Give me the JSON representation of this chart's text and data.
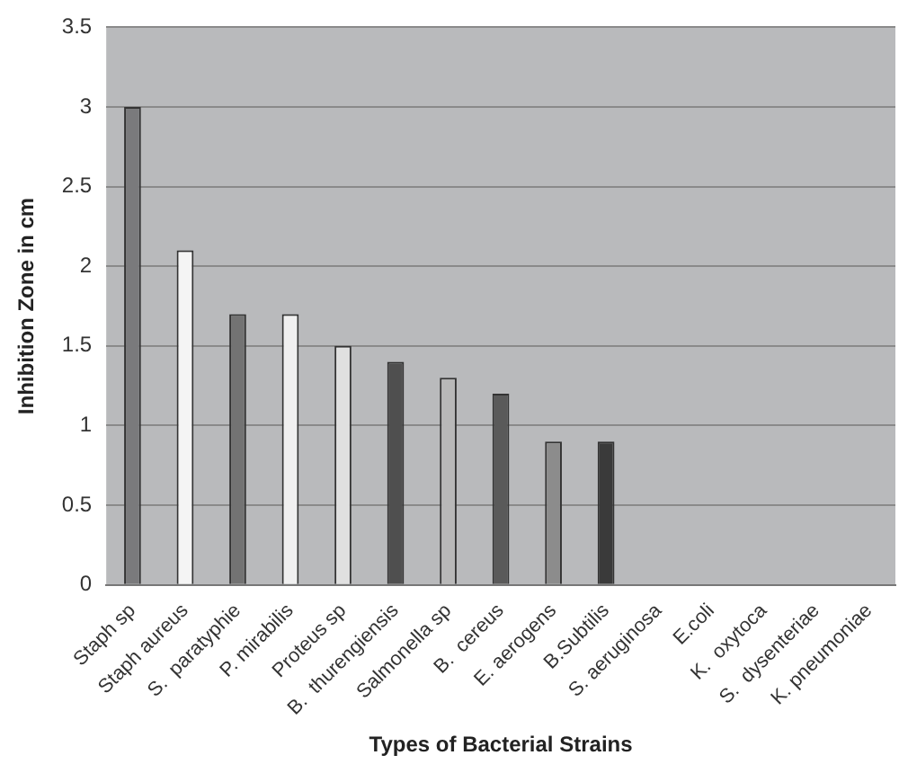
{
  "chart_data": {
    "type": "bar",
    "xlabel": "Types of Bacterial Strains",
    "ylabel": "Inhibition Zone in cm",
    "categories": [
      "Staph sp",
      "Staph aureus",
      "S.  paratyphie",
      "P. mirabilis",
      "Proteus sp",
      "B.  thurengiensis",
      "Salmonella sp",
      "B.  cereus",
      "E. aerogens",
      "B.Subtilis",
      "S. aeruginosa",
      "E.coli",
      "K.  oxytoca",
      "S.  dysenteriae",
      "K. pneumoniae"
    ],
    "values": [
      3,
      2.1,
      1.7,
      1.7,
      1.5,
      1.4,
      1.3,
      1.2,
      0.9,
      0.9,
      0,
      0,
      0,
      0,
      0
    ],
    "colors": [
      "#7a7a7c",
      "#f4f4f4",
      "#737373",
      "#f0f0f0",
      "#e0e0e0",
      "#4f4f4f",
      "#b8b8b8",
      "#5a5a5a",
      "#8c8c8c",
      "#3a3a3a",
      "#808080",
      "#808080",
      "#808080",
      "#808080",
      "#808080"
    ],
    "ylim": [
      0,
      3.5
    ],
    "yticks": [
      0,
      0.5,
      1,
      1.5,
      2,
      2.5,
      3,
      3.5
    ],
    "grid": "y",
    "legend": false
  }
}
